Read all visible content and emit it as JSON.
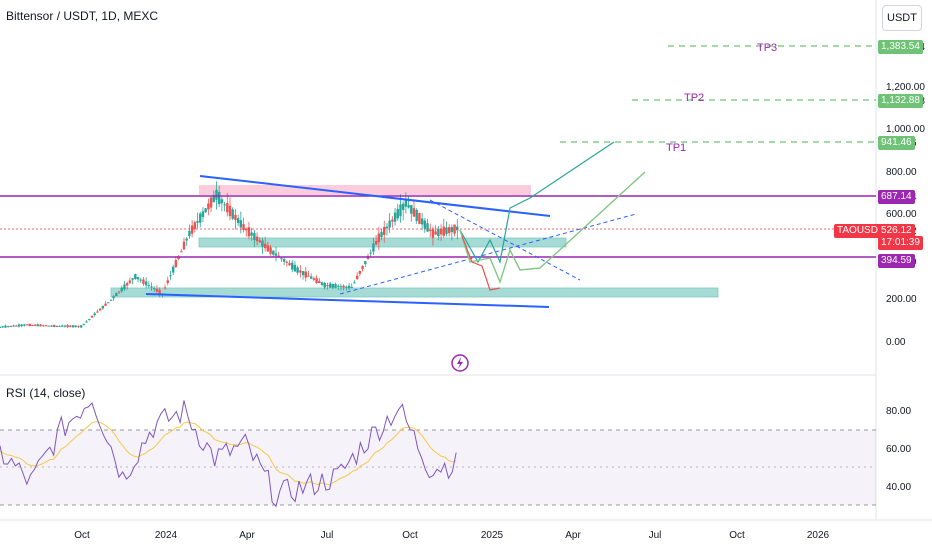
{
  "header": {
    "title": "Bittensor / USDT, 1D, MEXC",
    "currency_button": "USDT"
  },
  "price_axis_labels": [
    "1,383.54",
    "1,200.00",
    "1,132.88",
    "1,000.00",
    "941.46",
    "800.00",
    "687.14",
    "600.00",
    "526.12",
    "394.59",
    "200.00",
    "0.00"
  ],
  "time_axis_labels": [
    "Oct",
    "2024",
    "Apr",
    "Jul",
    "Oct",
    "2025",
    "Apr",
    "Jul",
    "Oct",
    "2026"
  ],
  "targets": [
    {
      "name": "TP3",
      "price": "1,383.54",
      "value": 1383.54
    },
    {
      "name": "TP2",
      "price": "1,132.88",
      "value": 1132.88
    },
    {
      "name": "TP1",
      "price": "941.46",
      "value": 941.46
    }
  ],
  "levels": {
    "resistance": {
      "price": "687.14",
      "value": 687.14
    },
    "support": {
      "price": "394.59",
      "value": 394.59
    }
  },
  "current": {
    "symbol": "TAOUSDT",
    "price": "526.12",
    "countdown": "17:01:39"
  },
  "rsi": {
    "title": "RSI (14, close)",
    "axis_labels": [
      "80.00",
      "60.00",
      "40.00"
    ]
  },
  "colors": {
    "candle_up": "#26a69a",
    "candle_down": "#ef5350",
    "level_line": "#9c27b0",
    "trend_line": "#2962ff",
    "target_line": "#6fc276",
    "zone_red": "#f8bbd0",
    "zone_teal": "#80cbc4",
    "rsi_line": "#7e57c2",
    "rsi_ma": "#f7c948"
  },
  "chart_data": {
    "type": "candlestick",
    "title": "Bittensor / USDT, 1D, MEXC",
    "y_ticks": [
      0,
      200,
      400,
      600,
      800,
      1000,
      1200
    ],
    "series": [
      {
        "name": "TAOUSDT",
        "x": [
          "2023-07",
          "2023-08",
          "2023-09",
          "2023-10",
          "2023-11",
          "2023-12",
          "2024-01",
          "2024-02",
          "2024-03",
          "2024-04",
          "2024-05",
          "2024-06",
          "2024-07",
          "2024-08",
          "2024-09",
          "2024-10",
          "2024-11",
          "2024-12"
        ],
        "close": [
          65,
          75,
          70,
          68,
          180,
          300,
          220,
          500,
          680,
          530,
          420,
          330,
          260,
          250,
          480,
          640,
          500,
          526
        ]
      }
    ],
    "rsi_series": {
      "name": "RSI (14, close)",
      "x": [
        "2023-09",
        "2023-10",
        "2023-11",
        "2023-12",
        "2024-01",
        "2024-02",
        "2024-03",
        "2024-04",
        "2024-05",
        "2024-06",
        "2024-07",
        "2024-08",
        "2024-09",
        "2024-10",
        "2024-11",
        "2024-12"
      ],
      "values": [
        58,
        42,
        70,
        88,
        45,
        72,
        80,
        55,
        62,
        35,
        40,
        45,
        65,
        82,
        50,
        52
      ]
    }
  }
}
